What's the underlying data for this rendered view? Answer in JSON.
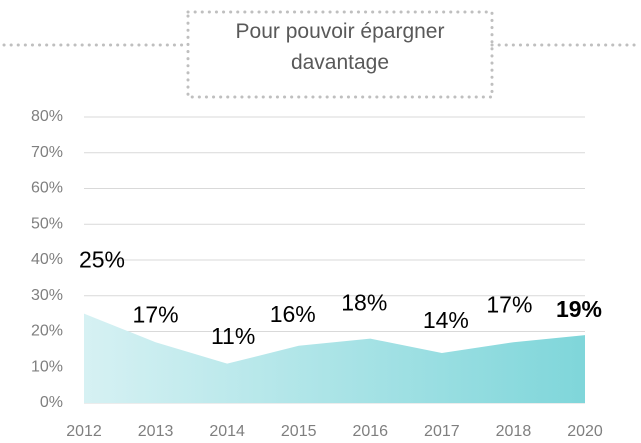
{
  "chart_data": {
    "type": "area",
    "title": "Pour pouvoir épargner davantage",
    "categories": [
      "2012",
      "2013",
      "2014",
      "2015",
      "2016",
      "2017",
      "2018",
      "2020"
    ],
    "values": [
      25,
      17,
      11,
      16,
      18,
      14,
      17,
      19
    ],
    "value_labels": [
      "25%",
      "17%",
      "11%",
      "16%",
      "18%",
      "14%",
      "17%",
      "19%"
    ],
    "value_label_colors": [
      "#000000",
      "#000000",
      "#000000",
      "#000000",
      "#000000",
      "#000000",
      "#000000",
      "#1aaeb0"
    ],
    "ylim": [
      0,
      80
    ],
    "yticks": [
      {
        "value": 0,
        "label": "0%"
      },
      {
        "value": 10,
        "label": "10%"
      },
      {
        "value": 20,
        "label": "20%"
      },
      {
        "value": 30,
        "label": "30%"
      },
      {
        "value": 40,
        "label": "40%"
      },
      {
        "value": 50,
        "label": "50%"
      },
      {
        "value": 60,
        "label": "60%"
      },
      {
        "value": 70,
        "label": "70%"
      },
      {
        "value": 80,
        "label": "80%"
      }
    ],
    "grid": true,
    "color_start": "#d6f1f3",
    "color_end": "#7fd6da"
  }
}
